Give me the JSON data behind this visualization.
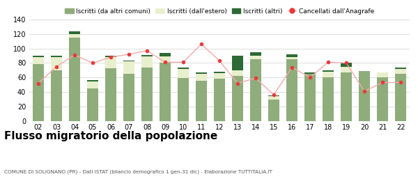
{
  "years": [
    "02",
    "03",
    "04",
    "05",
    "06",
    "07",
    "08",
    "09",
    "10",
    "11",
    "12",
    "13",
    "14",
    "15",
    "16",
    "17",
    "18",
    "19",
    "20",
    "21",
    "22"
  ],
  "iscritti_altri_comuni": [
    78,
    70,
    115,
    45,
    73,
    65,
    74,
    80,
    59,
    55,
    58,
    62,
    85,
    29,
    85,
    65,
    60,
    67,
    69,
    60,
    65
  ],
  "iscritti_estero": [
    10,
    18,
    5,
    9,
    15,
    17,
    15,
    9,
    13,
    10,
    8,
    8,
    5,
    5,
    3,
    0,
    8,
    8,
    0,
    7,
    7
  ],
  "iscritti_altri": [
    2,
    2,
    4,
    2,
    2,
    1,
    2,
    5,
    2,
    2,
    2,
    20,
    5,
    1,
    4,
    2,
    2,
    5,
    0,
    0,
    2
  ],
  "cancellati": [
    52,
    75,
    91,
    80,
    88,
    92,
    97,
    81,
    81,
    106,
    83,
    52,
    59,
    36,
    74,
    60,
    81,
    80,
    41,
    53,
    53
  ],
  "color_altri_comuni": "#8fac7b",
  "color_estero": "#e8efcc",
  "color_altri": "#2d6a35",
  "color_cancellati": "#e8373a",
  "color_cancellati_line": "#f4aaab",
  "ylim": [
    0,
    140
  ],
  "yticks": [
    0,
    20,
    40,
    60,
    80,
    100,
    120,
    140
  ],
  "title": "Flusso migratorio della popolazione",
  "subtitle": "COMUNE DI SOLIGNANO (PR) - Dati ISTAT (bilancio demografico 1 gen-31 dic) - Elaborazione TUTTITALIA.IT",
  "legend_labels": [
    "Iscritti (da altri comuni)",
    "Iscritti (dall'estero)",
    "Iscritti (altri)",
    "Cancellati dall'Anagrafe"
  ],
  "background_color": "#ffffff",
  "grid_color": "#d0d0d0"
}
